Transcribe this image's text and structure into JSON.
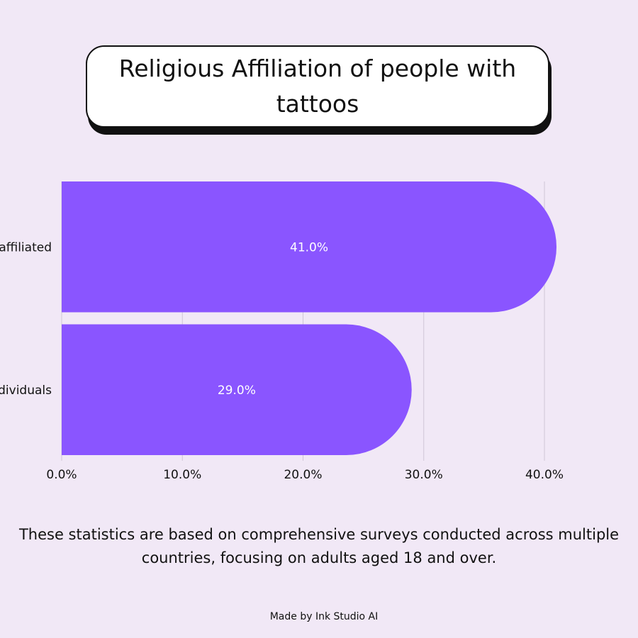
{
  "title": "Religious Affiliation of people with tattoos",
  "note": "These statistics are based on comprehensive surveys conducted across multiple countries, focusing on adults aged 18 and over.",
  "credit": "Made by Ink Studio AI",
  "colors": {
    "bar": "#8a55ff",
    "background": "#f1e8f6",
    "grid": "#cfc6d6"
  },
  "chart_data": {
    "type": "bar",
    "orientation": "horizontal",
    "categories": [
      "affiliated",
      "dividuals"
    ],
    "values": [
      41.0,
      29.0
    ],
    "value_labels": [
      "41.0%",
      "29.0%"
    ],
    "xlim": [
      0,
      40
    ],
    "xticks": [
      0,
      10,
      20,
      30,
      40
    ],
    "xtick_labels": [
      "0.0%",
      "10.0%",
      "20.0%",
      "30.0%",
      "40.0%"
    ],
    "grid": true
  }
}
